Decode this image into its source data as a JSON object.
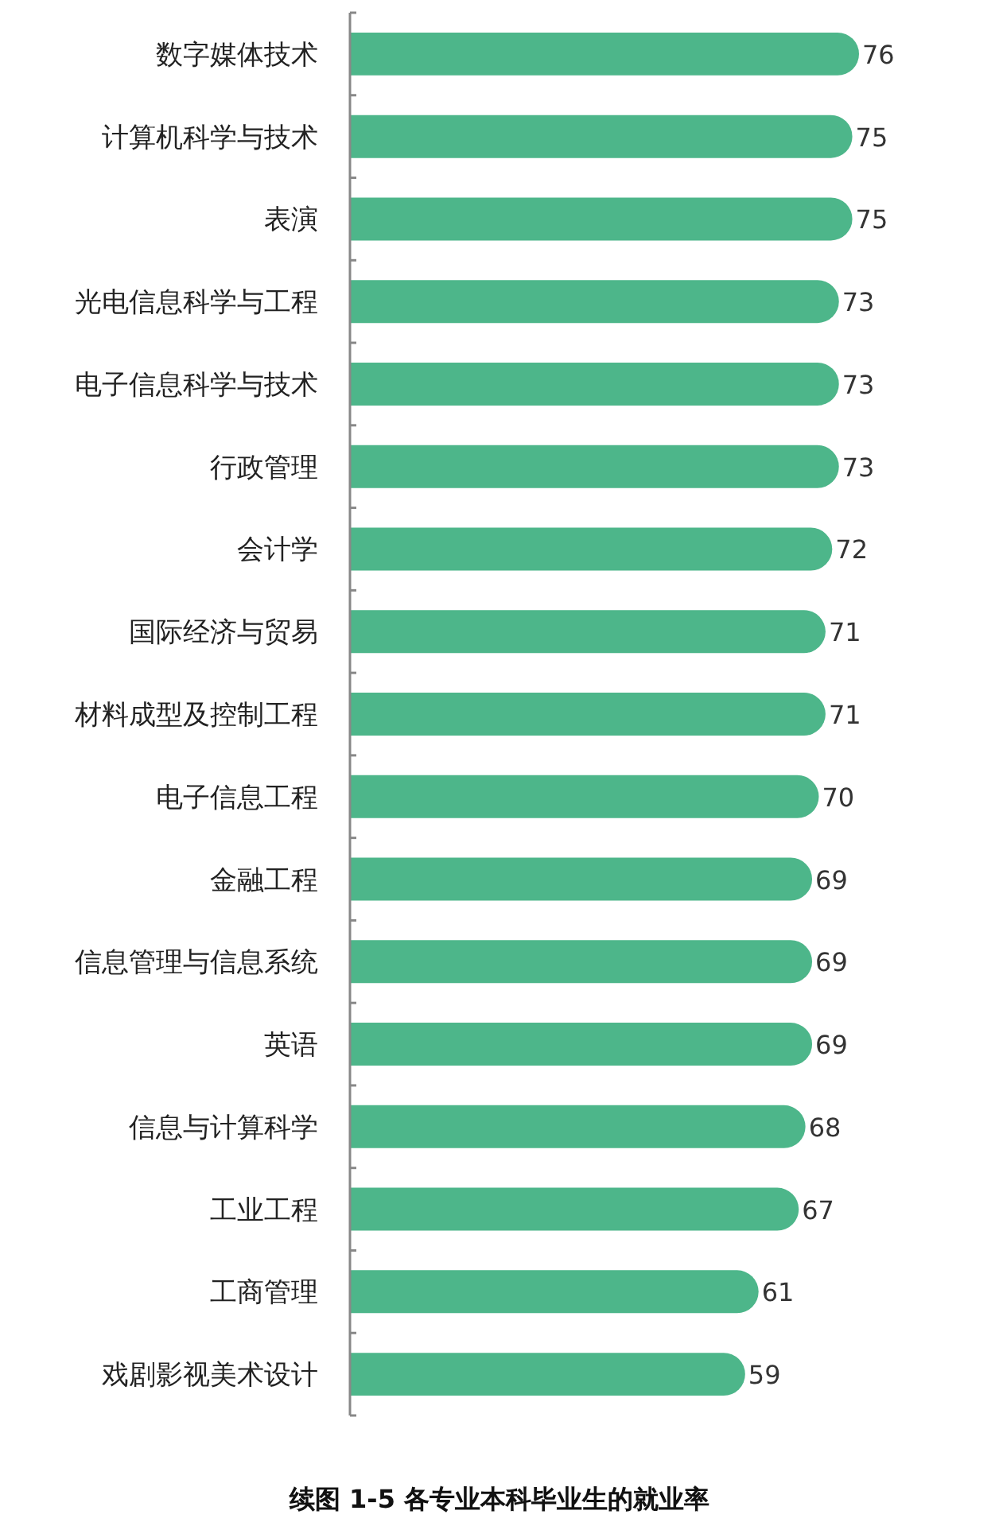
{
  "chart_data": {
    "type": "bar",
    "orientation": "horizontal",
    "title": "续图 1-5 各专业本科毕业生的就业率",
    "categories": [
      "数字媒体技术",
      "计算机科学与技术",
      "表演",
      "光电信息科学与工程",
      "电子信息科学与技术",
      "行政管理",
      "会计学",
      "国际经济与贸易",
      "材料成型及控制工程",
      "电子信息工程",
      "金融工程",
      "信息管理与信息系统",
      "英语",
      "信息与计算科学",
      "工业工程",
      "工商管理",
      "戏剧影视美术设计"
    ],
    "values": [
      76,
      75,
      75,
      73,
      73,
      73,
      72,
      71,
      71,
      70,
      69,
      69,
      69,
      68,
      67,
      61,
      59
    ],
    "color": "#4db68a",
    "data_labels": true
  }
}
